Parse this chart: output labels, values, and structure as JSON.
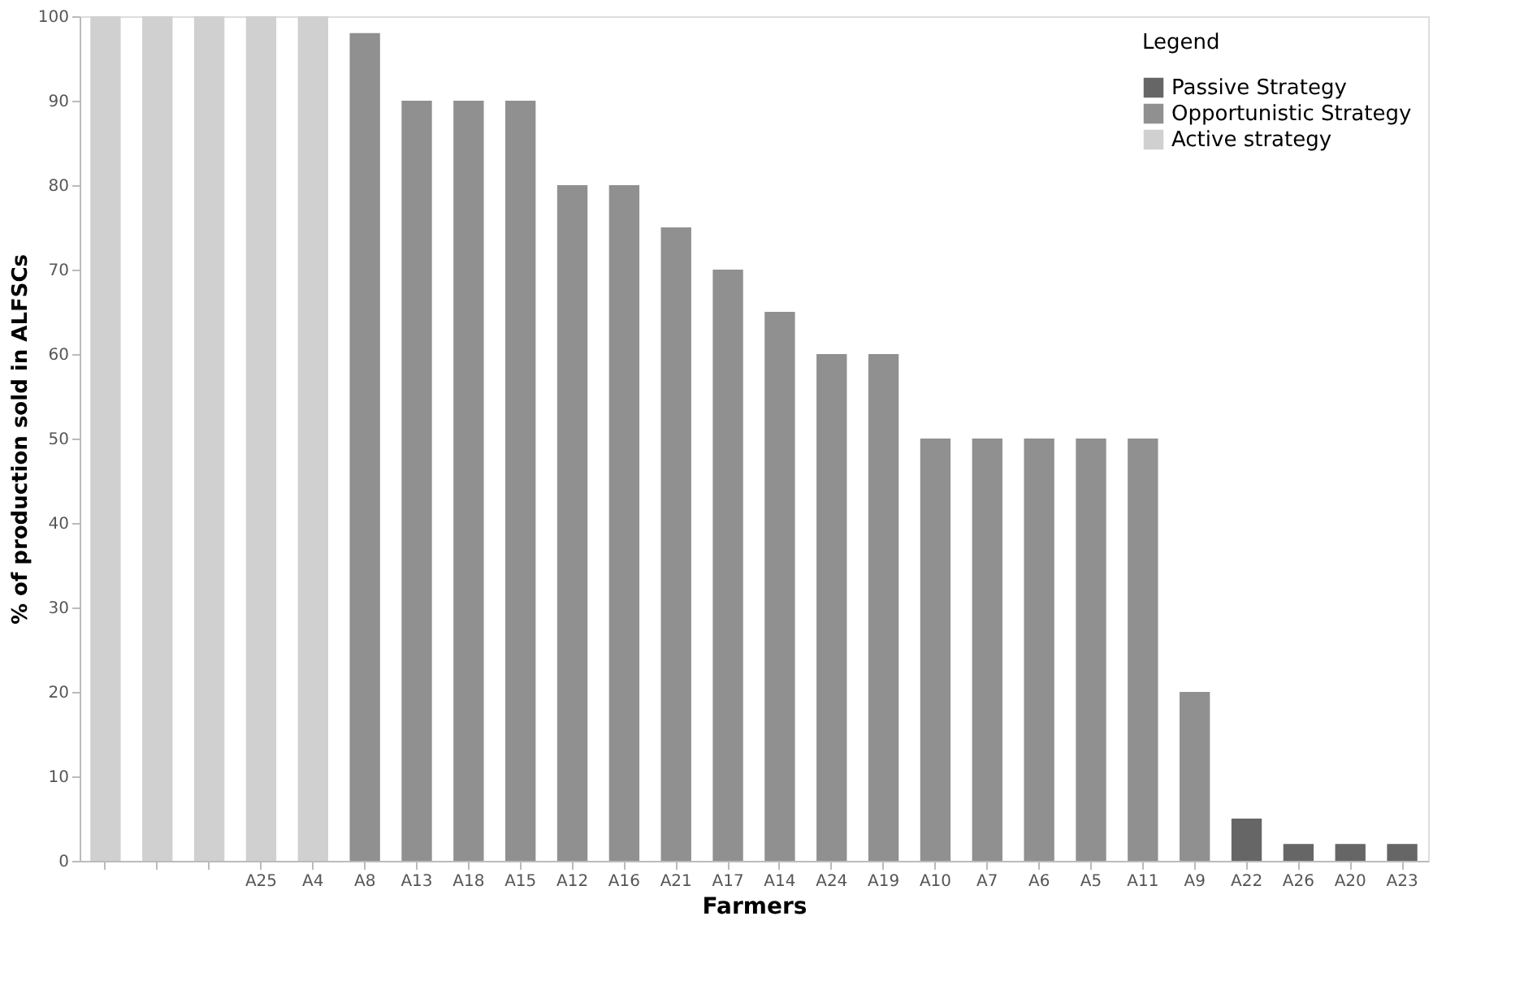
{
  "chart_data": {
    "type": "bar",
    "xlabel": "Farmers",
    "ylabel": "% of production sold in ALFSCs",
    "legend_title": "Legend",
    "legend": "top right",
    "grid": false,
    "categories": [
      null,
      null,
      null,
      "A25",
      "A4",
      "A8",
      "A13",
      "A18",
      "A15",
      "A12",
      "A16",
      "A21",
      "A17",
      "A14",
      "A24",
      "A19",
      "A10",
      "A7",
      "A6",
      "A5",
      "A11",
      "A9",
      "A22",
      "A26",
      "A20",
      "A23"
    ],
    "ylim": [
      0,
      100
    ],
    "yticks": [
      0,
      10,
      20,
      30,
      40,
      50,
      60,
      70,
      80,
      90,
      100
    ],
    "series": [
      {
        "name": "Passive Strategy",
        "color": "#666666",
        "values": [
          null,
          null,
          null,
          null,
          null,
          null,
          null,
          null,
          null,
          null,
          null,
          null,
          null,
          null,
          null,
          null,
          null,
          null,
          null,
          null,
          null,
          null,
          5,
          2,
          2,
          2
        ]
      },
      {
        "name": "Opportunistic Strategy",
        "color": "#909090",
        "values": [
          null,
          null,
          null,
          null,
          null,
          98,
          90,
          90,
          90,
          80,
          80,
          75,
          70,
          65,
          60,
          60,
          50,
          50,
          50,
          50,
          50,
          20,
          null,
          null,
          null,
          null
        ]
      },
      {
        "name": "Active strategy",
        "color": "#d0d0d0",
        "values": [
          100,
          100,
          100,
          100,
          100,
          null,
          null,
          null,
          null,
          null,
          null,
          null,
          null,
          null,
          null,
          null,
          null,
          null,
          null,
          null,
          null,
          null,
          null,
          null,
          null,
          null
        ]
      }
    ]
  }
}
